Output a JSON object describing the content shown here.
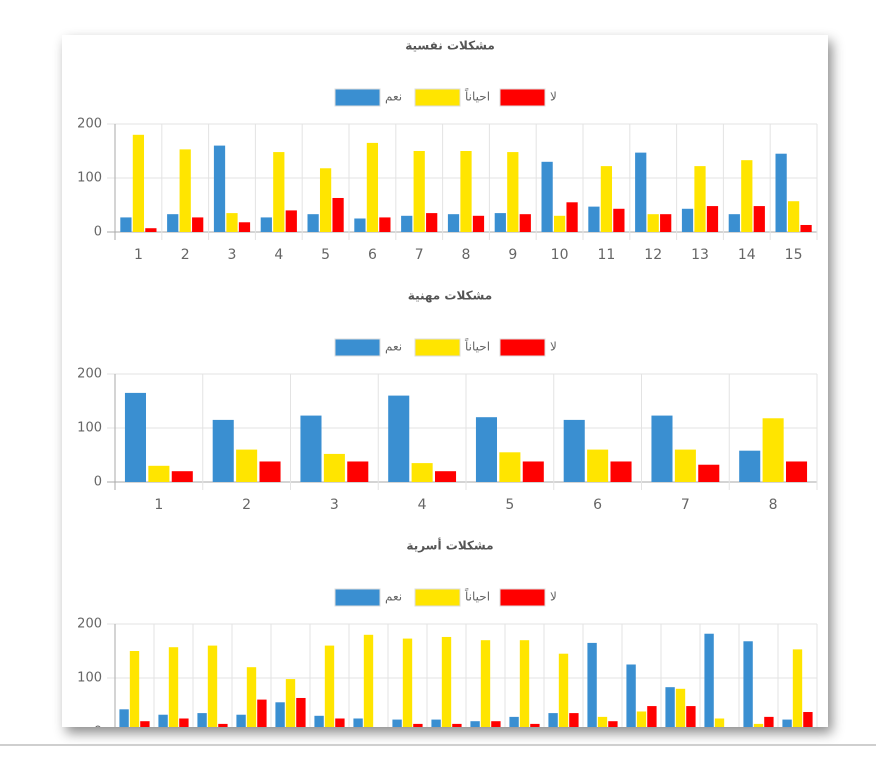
{
  "chart_data": [
    {
      "type": "bar",
      "title": "مشكلات نفسية",
      "categories": [
        "1",
        "2",
        "3",
        "4",
        "5",
        "6",
        "7",
        "8",
        "9",
        "10",
        "11",
        "12",
        "13",
        "14",
        "15"
      ],
      "series": [
        {
          "name": "نعم",
          "color": "#3a8fd1",
          "values": [
            27,
            33,
            160,
            27,
            33,
            25,
            30,
            33,
            35,
            130,
            47,
            147,
            43,
            33,
            145
          ]
        },
        {
          "name": "احياناً",
          "color": "#ffe500",
          "values": [
            180,
            153,
            35,
            148,
            118,
            165,
            150,
            150,
            148,
            30,
            122,
            33,
            122,
            133,
            57
          ]
        },
        {
          "name": "لا",
          "color": "#ff0000",
          "values": [
            7,
            27,
            18,
            40,
            63,
            27,
            35,
            30,
            33,
            55,
            43,
            33,
            48,
            48,
            13
          ]
        }
      ],
      "ylim": [
        0,
        200
      ],
      "yticks": [
        0,
        100,
        200
      ],
      "grid": true,
      "legend": "top"
    },
    {
      "type": "bar",
      "title": "مشكلات مهنية",
      "categories": [
        "1",
        "2",
        "3",
        "4",
        "5",
        "6",
        "7",
        "8"
      ],
      "series": [
        {
          "name": "نعم",
          "color": "#3a8fd1",
          "values": [
            165,
            115,
            123,
            160,
            120,
            115,
            123,
            58
          ]
        },
        {
          "name": "احياناً",
          "color": "#ffe500",
          "values": [
            30,
            60,
            52,
            35,
            55,
            60,
            60,
            118
          ]
        },
        {
          "name": "لا",
          "color": "#ff0000",
          "values": [
            20,
            38,
            38,
            20,
            38,
            38,
            32,
            38
          ]
        }
      ],
      "ylim": [
        0,
        200
      ],
      "yticks": [
        0,
        100,
        200
      ],
      "grid": true,
      "legend": "top"
    },
    {
      "type": "bar",
      "title": "مشكلات أسرية",
      "categories": [
        null,
        null,
        null,
        null,
        null,
        null,
        null,
        null,
        null,
        null,
        null,
        null,
        null,
        null,
        null,
        null,
        null,
        null
      ],
      "series": [
        {
          "name": "نعم",
          "color": "#3a8fd1",
          "values": [
            42,
            32,
            35,
            32,
            55,
            30,
            25,
            23,
            23,
            20,
            28,
            35,
            165,
            125,
            83,
            182,
            168,
            23
          ]
        },
        {
          "name": "احياناً",
          "color": "#ffe500",
          "values": [
            150,
            157,
            160,
            120,
            98,
            160,
            180,
            173,
            176,
            170,
            170,
            145,
            28,
            38,
            80,
            25,
            15,
            153
          ]
        },
        {
          "name": "لا",
          "color": "#ff0000",
          "values": [
            20,
            25,
            15,
            60,
            63,
            25,
            5,
            15,
            15,
            20,
            15,
            35,
            20,
            48,
            48,
            0,
            28,
            37
          ]
        }
      ],
      "ylim": [
        0,
        200
      ],
      "yticks": [
        0,
        100,
        200
      ],
      "grid": true,
      "legend": "top"
    }
  ]
}
